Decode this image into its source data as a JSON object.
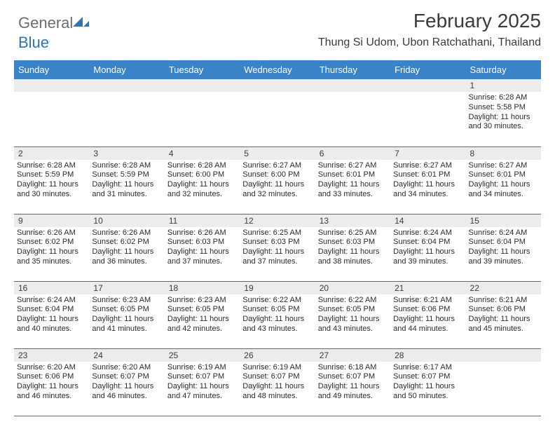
{
  "brand": {
    "part1": "General",
    "part2": "Blue",
    "triangle_color": "#2f73b8"
  },
  "title": "February 2025",
  "location": "Thung Si Udom, Ubon Ratchathani, Thailand",
  "colors": {
    "header_bg": "#3b83c7",
    "header_text": "#ffffff",
    "daynum_bg": "#ececec",
    "cell_border": "#2f73b8",
    "text": "#2b2b2b"
  },
  "day_headers": [
    "Sunday",
    "Monday",
    "Tuesday",
    "Wednesday",
    "Thursday",
    "Friday",
    "Saturday"
  ],
  "weeks": [
    [
      null,
      null,
      null,
      null,
      null,
      null,
      {
        "d": "1",
        "sr": "Sunrise: 6:28 AM",
        "ss": "Sunset: 5:58 PM",
        "dl": "Daylight: 11 hours and 30 minutes."
      }
    ],
    [
      {
        "d": "2",
        "sr": "Sunrise: 6:28 AM",
        "ss": "Sunset: 5:59 PM",
        "dl": "Daylight: 11 hours and 30 minutes."
      },
      {
        "d": "3",
        "sr": "Sunrise: 6:28 AM",
        "ss": "Sunset: 5:59 PM",
        "dl": "Daylight: 11 hours and 31 minutes."
      },
      {
        "d": "4",
        "sr": "Sunrise: 6:28 AM",
        "ss": "Sunset: 6:00 PM",
        "dl": "Daylight: 11 hours and 32 minutes."
      },
      {
        "d": "5",
        "sr": "Sunrise: 6:27 AM",
        "ss": "Sunset: 6:00 PM",
        "dl": "Daylight: 11 hours and 32 minutes."
      },
      {
        "d": "6",
        "sr": "Sunrise: 6:27 AM",
        "ss": "Sunset: 6:01 PM",
        "dl": "Daylight: 11 hours and 33 minutes."
      },
      {
        "d": "7",
        "sr": "Sunrise: 6:27 AM",
        "ss": "Sunset: 6:01 PM",
        "dl": "Daylight: 11 hours and 34 minutes."
      },
      {
        "d": "8",
        "sr": "Sunrise: 6:27 AM",
        "ss": "Sunset: 6:01 PM",
        "dl": "Daylight: 11 hours and 34 minutes."
      }
    ],
    [
      {
        "d": "9",
        "sr": "Sunrise: 6:26 AM",
        "ss": "Sunset: 6:02 PM",
        "dl": "Daylight: 11 hours and 35 minutes."
      },
      {
        "d": "10",
        "sr": "Sunrise: 6:26 AM",
        "ss": "Sunset: 6:02 PM",
        "dl": "Daylight: 11 hours and 36 minutes."
      },
      {
        "d": "11",
        "sr": "Sunrise: 6:26 AM",
        "ss": "Sunset: 6:03 PM",
        "dl": "Daylight: 11 hours and 37 minutes."
      },
      {
        "d": "12",
        "sr": "Sunrise: 6:25 AM",
        "ss": "Sunset: 6:03 PM",
        "dl": "Daylight: 11 hours and 37 minutes."
      },
      {
        "d": "13",
        "sr": "Sunrise: 6:25 AM",
        "ss": "Sunset: 6:03 PM",
        "dl": "Daylight: 11 hours and 38 minutes."
      },
      {
        "d": "14",
        "sr": "Sunrise: 6:24 AM",
        "ss": "Sunset: 6:04 PM",
        "dl": "Daylight: 11 hours and 39 minutes."
      },
      {
        "d": "15",
        "sr": "Sunrise: 6:24 AM",
        "ss": "Sunset: 6:04 PM",
        "dl": "Daylight: 11 hours and 39 minutes."
      }
    ],
    [
      {
        "d": "16",
        "sr": "Sunrise: 6:24 AM",
        "ss": "Sunset: 6:04 PM",
        "dl": "Daylight: 11 hours and 40 minutes."
      },
      {
        "d": "17",
        "sr": "Sunrise: 6:23 AM",
        "ss": "Sunset: 6:05 PM",
        "dl": "Daylight: 11 hours and 41 minutes."
      },
      {
        "d": "18",
        "sr": "Sunrise: 6:23 AM",
        "ss": "Sunset: 6:05 PM",
        "dl": "Daylight: 11 hours and 42 minutes."
      },
      {
        "d": "19",
        "sr": "Sunrise: 6:22 AM",
        "ss": "Sunset: 6:05 PM",
        "dl": "Daylight: 11 hours and 43 minutes."
      },
      {
        "d": "20",
        "sr": "Sunrise: 6:22 AM",
        "ss": "Sunset: 6:05 PM",
        "dl": "Daylight: 11 hours and 43 minutes."
      },
      {
        "d": "21",
        "sr": "Sunrise: 6:21 AM",
        "ss": "Sunset: 6:06 PM",
        "dl": "Daylight: 11 hours and 44 minutes."
      },
      {
        "d": "22",
        "sr": "Sunrise: 6:21 AM",
        "ss": "Sunset: 6:06 PM",
        "dl": "Daylight: 11 hours and 45 minutes."
      }
    ],
    [
      {
        "d": "23",
        "sr": "Sunrise: 6:20 AM",
        "ss": "Sunset: 6:06 PM",
        "dl": "Daylight: 11 hours and 46 minutes."
      },
      {
        "d": "24",
        "sr": "Sunrise: 6:20 AM",
        "ss": "Sunset: 6:07 PM",
        "dl": "Daylight: 11 hours and 46 minutes."
      },
      {
        "d": "25",
        "sr": "Sunrise: 6:19 AM",
        "ss": "Sunset: 6:07 PM",
        "dl": "Daylight: 11 hours and 47 minutes."
      },
      {
        "d": "26",
        "sr": "Sunrise: 6:19 AM",
        "ss": "Sunset: 6:07 PM",
        "dl": "Daylight: 11 hours and 48 minutes."
      },
      {
        "d": "27",
        "sr": "Sunrise: 6:18 AM",
        "ss": "Sunset: 6:07 PM",
        "dl": "Daylight: 11 hours and 49 minutes."
      },
      {
        "d": "28",
        "sr": "Sunrise: 6:17 AM",
        "ss": "Sunset: 6:07 PM",
        "dl": "Daylight: 11 hours and 50 minutes."
      },
      null
    ]
  ]
}
